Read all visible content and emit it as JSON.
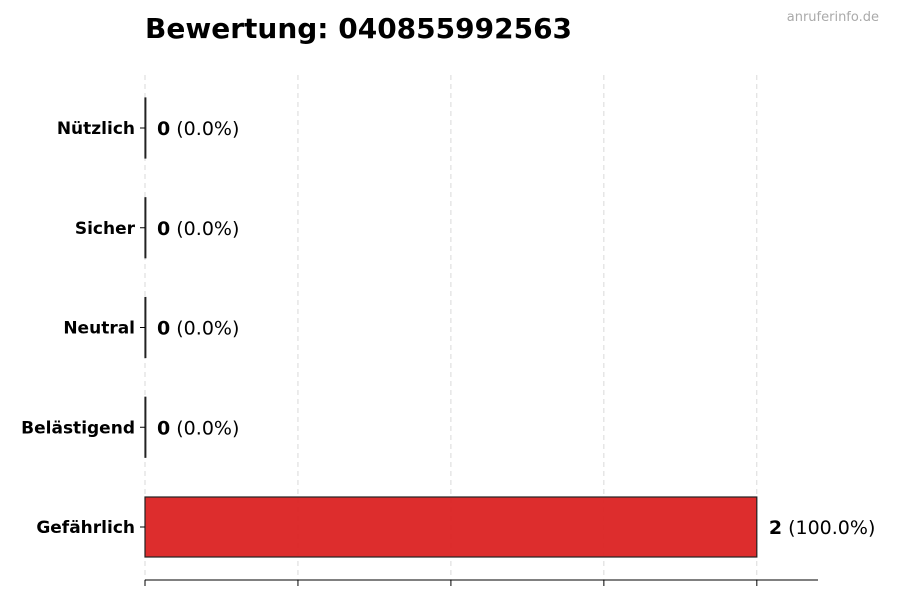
{
  "chart_data": {
    "type": "bar",
    "orientation": "horizontal",
    "title": "Bewertung: 040855992563",
    "watermark": "anruferinfo.de",
    "categories": [
      "Nützlich",
      "Sicher",
      "Neutral",
      "Belästigend",
      "Gefährlich"
    ],
    "values": [
      0,
      0,
      0,
      0,
      2
    ],
    "value_labels": [
      "0",
      "0",
      "0",
      "0",
      "2"
    ],
    "percent_labels": [
      "(0.0%)",
      "(0.0%)",
      "(0.0%)",
      "(0.0%)",
      "(100.0%)"
    ],
    "colors": [
      "#2e7d32",
      "#43a047",
      "#9e9e9e",
      "#f57c00",
      "#dc2626"
    ],
    "xlim": [
      0,
      2.2
    ],
    "xticks": [
      0,
      0.5,
      1,
      1.5,
      2
    ],
    "xtick_labels_shown": false,
    "grid": "x, dashed",
    "xlabel": "",
    "ylabel": ""
  }
}
